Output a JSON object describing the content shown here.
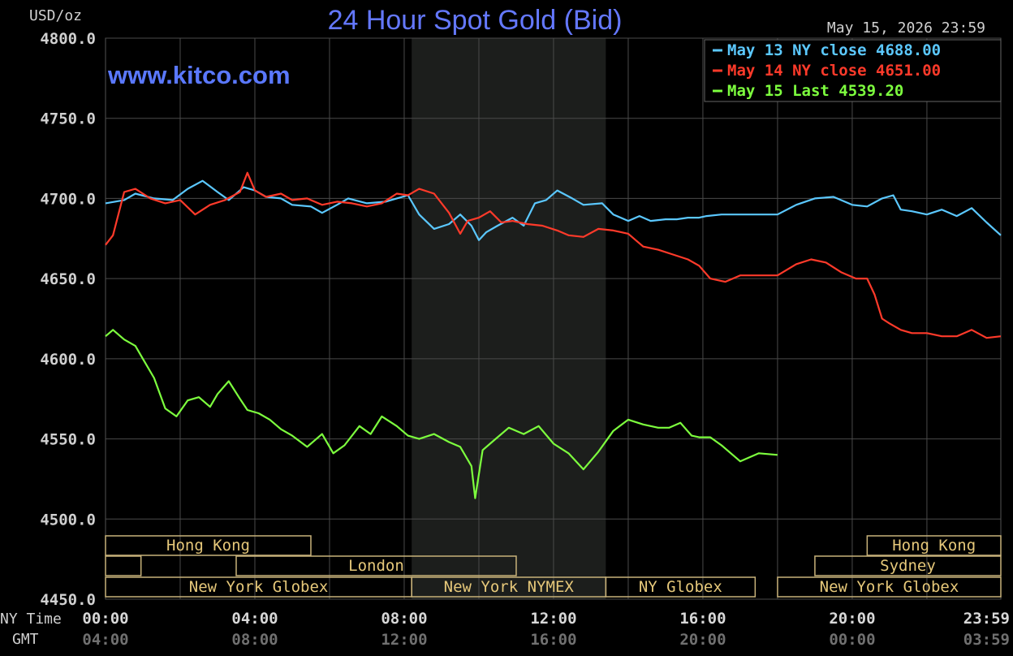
{
  "chart_data": {
    "type": "line",
    "title": "24 Hour Spot Gold (Bid)",
    "unit_label": "USD/oz",
    "watermark": "www.kitco.com",
    "timestamp": "May 15, 2026 23:59",
    "ylim": [
      4450,
      4800
    ],
    "y_ticks": [
      "4800.0",
      "4750.0",
      "4700.0",
      "4650.0",
      "4600.0",
      "4550.0",
      "4500.0",
      "4450.0"
    ],
    "x_row_label": "NY Time",
    "gmt_row_label": "GMT",
    "x_ticks": [
      {
        "h": 0,
        "ny": "00:00",
        "gmt": "04:00"
      },
      {
        "h": 4,
        "ny": "04:00",
        "gmt": "08:00"
      },
      {
        "h": 8,
        "ny": "08:00",
        "gmt": "12:00"
      },
      {
        "h": 12,
        "ny": "12:00",
        "gmt": "16:00"
      },
      {
        "h": 16,
        "ny": "16:00",
        "gmt": "20:00"
      },
      {
        "h": 20,
        "ny": "20:00",
        "gmt": "00:00"
      },
      {
        "h": 23.98,
        "ny": "23:59",
        "gmt": "03:59"
      }
    ],
    "legend_placement": "top-right",
    "grid": true,
    "shaded_session_hours": [
      8.2,
      13.4
    ],
    "series": [
      {
        "name": "May 13 NY close 4688.00",
        "color": "#5bc8ff",
        "x": [
          0,
          0.5,
          0.8,
          1.3,
          1.8,
          2.2,
          2.6,
          3.0,
          3.3,
          3.7,
          4.0,
          4.3,
          4.7,
          5.0,
          5.5,
          5.8,
          6.2,
          6.5,
          7.0,
          7.5,
          7.8,
          8.1,
          8.4,
          8.8,
          9.2,
          9.5,
          9.8,
          10.0,
          10.2,
          10.5,
          10.9,
          11.2,
          11.5,
          11.8,
          12.1,
          12.5,
          12.8,
          13.3,
          13.6,
          14.0,
          14.3,
          14.6,
          15.0,
          15.3,
          15.6,
          15.9,
          16.1,
          16.5,
          17.0,
          18.0,
          18.5,
          19.0,
          19.5,
          20.0,
          20.4,
          20.8,
          21.1,
          21.3,
          21.6,
          22.0,
          22.4,
          22.8,
          23.2,
          23.6,
          23.98
        ],
        "y": [
          4697,
          4699,
          4703,
          4700,
          4699,
          4706,
          4711,
          4704,
          4699,
          4707,
          4705,
          4701,
          4700,
          4696,
          4695,
          4691,
          4696,
          4700,
          4697,
          4698,
          4700,
          4702,
          4690,
          4681,
          4684,
          4690,
          4683,
          4674,
          4679,
          4683,
          4688,
          4683,
          4697,
          4699,
          4705,
          4700,
          4696,
          4697,
          4690,
          4686,
          4689,
          4686,
          4687,
          4687,
          4688,
          4688,
          4689,
          4690,
          4690,
          4690,
          4696,
          4700,
          4701,
          4696,
          4695,
          4700,
          4702,
          4693,
          4692,
          4690,
          4693,
          4689,
          4694,
          4685,
          4677
        ]
      },
      {
        "name": "May 14 NY close 4651.00",
        "color": "#ff3a2a",
        "x": [
          0,
          0.2,
          0.5,
          0.8,
          1.2,
          1.6,
          2.0,
          2.4,
          2.8,
          3.2,
          3.6,
          3.8,
          4.0,
          4.3,
          4.7,
          5.0,
          5.4,
          5.8,
          6.2,
          6.6,
          7.0,
          7.4,
          7.8,
          8.1,
          8.4,
          8.8,
          9.2,
          9.5,
          9.7,
          10.0,
          10.3,
          10.6,
          10.9,
          11.3,
          11.7,
          12.1,
          12.4,
          12.8,
          13.2,
          13.6,
          14.0,
          14.4,
          14.8,
          15.2,
          15.6,
          15.9,
          16.2,
          16.6,
          17.0,
          17.5,
          18.0,
          18.5,
          18.9,
          19.3,
          19.7,
          20.1,
          20.4,
          20.6,
          20.8,
          21.0,
          21.3,
          21.6,
          22.0,
          22.4,
          22.8,
          23.2,
          23.6,
          23.98
        ],
        "y": [
          4671,
          4677,
          4704,
          4706,
          4700,
          4697,
          4699,
          4690,
          4696,
          4699,
          4704,
          4716,
          4705,
          4701,
          4703,
          4699,
          4700,
          4696,
          4698,
          4697,
          4695,
          4697,
          4703,
          4702,
          4706,
          4703,
          4691,
          4678,
          4686,
          4688,
          4692,
          4685,
          4686,
          4684,
          4683,
          4680,
          4677,
          4676,
          4681,
          4680,
          4678,
          4670,
          4668,
          4665,
          4662,
          4658,
          4650,
          4648,
          4652,
          4652,
          4652,
          4659,
          4662,
          4660,
          4654,
          4650,
          4650,
          4640,
          4625,
          4622,
          4618,
          4616,
          4616,
          4614,
          4614,
          4618,
          4613,
          4614
        ]
      },
      {
        "name": "May 15 Last 4539.20",
        "color": "#7dff3e",
        "x": [
          0,
          0.2,
          0.5,
          0.8,
          1.0,
          1.3,
          1.6,
          1.9,
          2.2,
          2.5,
          2.8,
          3.0,
          3.3,
          3.6,
          3.8,
          4.1,
          4.4,
          4.7,
          5.0,
          5.4,
          5.8,
          6.1,
          6.4,
          6.8,
          7.1,
          7.4,
          7.8,
          8.1,
          8.4,
          8.8,
          9.2,
          9.5,
          9.8,
          9.9,
          10.1,
          10.4,
          10.8,
          11.2,
          11.6,
          12.0,
          12.4,
          12.8,
          13.2,
          13.6,
          14.0,
          14.4,
          14.8,
          15.1,
          15.4,
          15.7,
          15.9,
          16.2,
          16.5,
          17.0,
          17.5,
          18.0
        ],
        "y": [
          4614,
          4618,
          4612,
          4608,
          4600,
          4588,
          4569,
          4564,
          4574,
          4576,
          4570,
          4578,
          4586,
          4575,
          4568,
          4566,
          4562,
          4556,
          4552,
          4545,
          4553,
          4541,
          4546,
          4558,
          4553,
          4564,
          4558,
          4552,
          4550,
          4553,
          4548,
          4545,
          4533,
          4513,
          4543,
          4549,
          4557,
          4553,
          4558,
          4547,
          4541,
          4531,
          4542,
          4555,
          4562,
          4559,
          4557,
          4557,
          4560,
          4552,
          4551,
          4551,
          4546,
          4536,
          4541,
          4540
        ]
      }
    ],
    "sessions": [
      {
        "label": "Hong Kong",
        "row": 0,
        "start": 0,
        "end": 5.5
      },
      {
        "label": "",
        "row": 1,
        "start": 0,
        "end": 0.95
      },
      {
        "label": "London",
        "row": 1,
        "start": 3.5,
        "end": 11.0
      },
      {
        "label": "New York Globex",
        "row": 2,
        "start": 0,
        "end": 8.2
      },
      {
        "label": "New York NYMEX",
        "row": 2,
        "start": 8.2,
        "end": 13.4
      },
      {
        "label": "NY Globex",
        "row": 2,
        "start": 13.4,
        "end": 17.4
      },
      {
        "label": "Hong Kong",
        "row": 0,
        "start": 20.4,
        "end": 23.98
      },
      {
        "label": "Sydney",
        "row": 1,
        "start": 19.0,
        "end": 23.98
      },
      {
        "label": "New York Globex",
        "row": 2,
        "start": 18.0,
        "end": 23.98
      }
    ]
  }
}
